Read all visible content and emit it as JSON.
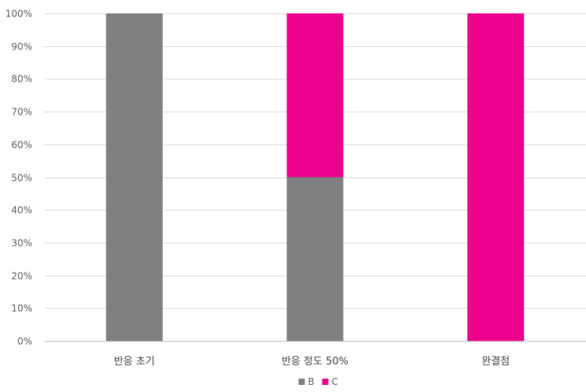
{
  "chart_data": {
    "type": "bar",
    "stacked": true,
    "title": "",
    "xlabel": "",
    "ylabel": "",
    "categories": [
      "반응 초기",
      "반응 정도 50%",
      "완결점"
    ],
    "series": [
      {
        "name": "B",
        "color": "#808080",
        "values": [
          100,
          50,
          0
        ]
      },
      {
        "name": "C",
        "color": "#EC008C",
        "values": [
          0,
          50,
          100
        ]
      }
    ],
    "ylim": [
      0,
      100
    ],
    "yticks": [
      0,
      10,
      20,
      30,
      40,
      50,
      60,
      70,
      80,
      90,
      100
    ],
    "ytick_labels": [
      "0%",
      "10%",
      "20%",
      "30%",
      "40%",
      "50%",
      "60%",
      "70%",
      "80%",
      "90%",
      "100%"
    ],
    "grid": true,
    "legend": "bottom"
  }
}
